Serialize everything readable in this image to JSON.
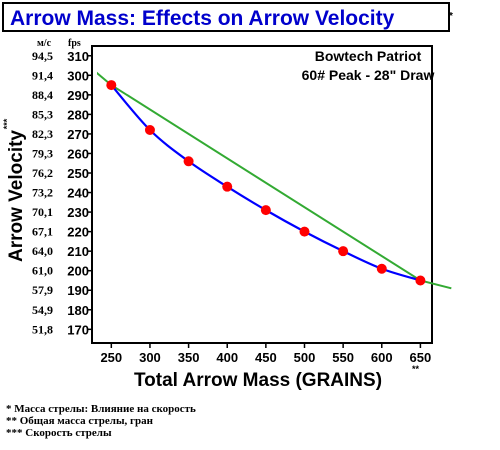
{
  "chart_data": {
    "type": "line",
    "title": "Arrow Mass:  Effects on Arrow Velocity",
    "title_mark": "*",
    "annotation": [
      "Bowtech Patriot",
      "60# Peak - 28\" Draw"
    ],
    "xlabel": "Total Arrow Mass (GRAINS)",
    "xlabel_mark": "**",
    "ylabel": "Arrow Velocity",
    "ylabel_mark": "***",
    "x_ticks": [
      250,
      300,
      350,
      400,
      450,
      500,
      550,
      600,
      650
    ],
    "xlim": [
      225,
      665
    ],
    "y_ticks_fps": [
      310,
      300,
      290,
      280,
      270,
      260,
      250,
      240,
      230,
      220,
      210,
      200,
      190,
      180,
      170
    ],
    "ylim": [
      163,
      315
    ],
    "y_unit_fps": "fps",
    "y_unit_ms": "м/с",
    "y_ticks_ms": [
      {
        "label": "94,5",
        "fps": 310
      },
      {
        "label": "91,4",
        "fps": 300
      },
      {
        "label": "88,4",
        "fps": 290
      },
      {
        "label": "85,3",
        "fps": 280
      },
      {
        "label": "82,3",
        "fps": 270
      },
      {
        "label": "79,3",
        "fps": 260
      },
      {
        "label": "76,2",
        "fps": 250
      },
      {
        "label": "73,2",
        "fps": 240
      },
      {
        "label": "70,1",
        "fps": 230
      },
      {
        "label": "67,1",
        "fps": 220
      },
      {
        "label": "64,0",
        "fps": 210
      },
      {
        "label": "61,0",
        "fps": 200
      },
      {
        "label": "57,9",
        "fps": 190
      },
      {
        "label": "54,9",
        "fps": 180
      },
      {
        "label": "51,8",
        "fps": 170
      }
    ],
    "series": [
      {
        "x": [
          250,
          300,
          350,
          400,
          450,
          500,
          550,
          600,
          650
        ],
        "y": [
          295,
          272,
          256,
          243,
          231,
          220,
          210,
          201,
          195
        ],
        "line_color": "#0000ff",
        "marker_color": "#ff0000"
      }
    ],
    "trend_extension": {
      "color": "#33aa33",
      "x": [
        220,
        250,
        650,
        690
      ],
      "y": [
        305,
        295,
        195,
        191
      ]
    },
    "grid": false
  },
  "notes": [
    "* Масса стрелы: Влияние на скорость",
    "** Общая масса стрелы, гран",
    "*** Скорость стрелы"
  ]
}
